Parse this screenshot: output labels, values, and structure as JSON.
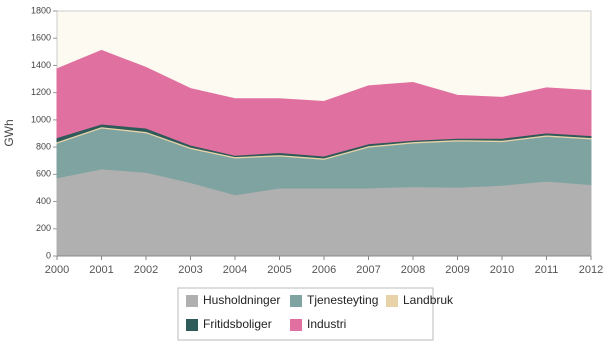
{
  "chart_data": {
    "type": "stacked_area",
    "y_label": "GWh",
    "categories": [
      "2000",
      "2001",
      "2002",
      "2003",
      "2004",
      "2005",
      "2006",
      "2007",
      "2008",
      "2009",
      "2010",
      "2011",
      "2012"
    ],
    "series": [
      {
        "name": "Husholdninger",
        "color": "#b0b0b0",
        "values": [
          575,
          640,
          615,
          540,
          450,
          500,
          500,
          500,
          510,
          505,
          520,
          550,
          525
        ]
      },
      {
        "name": "Tjenesteyting",
        "color": "#7fa3a0",
        "values": [
          255,
          300,
          290,
          250,
          270,
          235,
          210,
          300,
          320,
          340,
          320,
          330,
          335
        ]
      },
      {
        "name": "Landbruk",
        "color": "#e8d3a8",
        "values": [
          10,
          10,
          10,
          10,
          10,
          10,
          10,
          10,
          10,
          10,
          10,
          10,
          10
        ]
      },
      {
        "name": "Fritidsboliger",
        "color": "#2f5a5a",
        "values": [
          30,
          20,
          25,
          15,
          10,
          15,
          15,
          15,
          10,
          10,
          15,
          15,
          15
        ]
      },
      {
        "name": "Industri",
        "color": "#e0709f",
        "values": [
          505,
          540,
          445,
          415,
          415,
          395,
          400,
          425,
          425,
          315,
          300,
          330,
          330
        ]
      }
    ],
    "ylim": [
      0,
      1800
    ],
    "yticks": [
      0,
      200,
      400,
      600,
      800,
      1000,
      1200,
      1400,
      1600,
      1800
    ]
  }
}
